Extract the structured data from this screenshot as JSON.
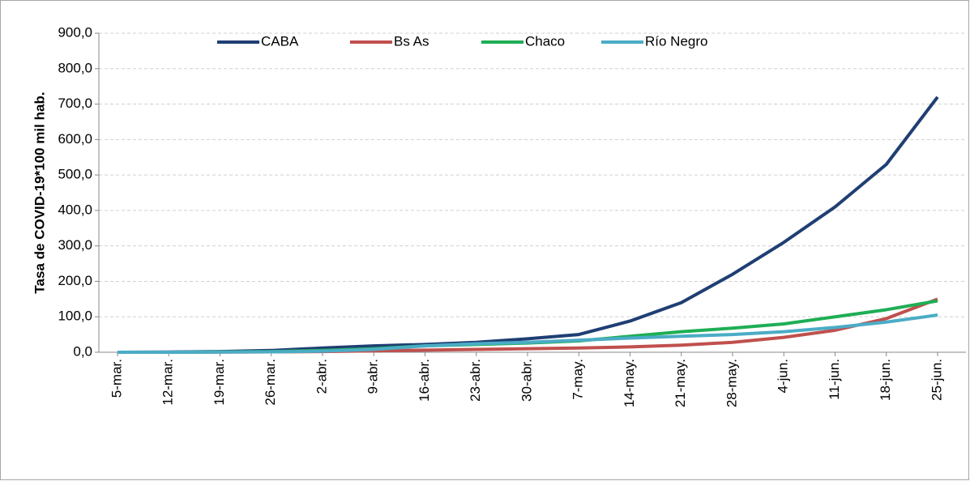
{
  "chart_data": {
    "type": "line",
    "y_label": "Tasa de COVID-19*100 mil hab.",
    "categories": [
      "5-mar.",
      "12-mar.",
      "19-mar.",
      "26-mar.",
      "2-abr.",
      "9-abr.",
      "16-abr.",
      "23-abr.",
      "30-abr.",
      "7-may.",
      "14-may.",
      "21-may.",
      "28-may.",
      "4-jun.",
      "11-jun.",
      "18-jun.",
      "25-jun."
    ],
    "series": [
      {
        "name": "CABA",
        "color": "#1f3f73",
        "values": [
          0,
          0.5,
          2,
          5,
          12,
          18,
          22,
          28,
          38,
          50,
          88,
          140,
          220,
          310,
          410,
          530,
          720
        ]
      },
      {
        "name": "Bs As",
        "color": "#c0504d",
        "values": [
          0,
          0,
          0.5,
          1,
          2,
          4,
          6,
          8,
          10,
          12,
          15,
          20,
          28,
          42,
          62,
          95,
          150
        ]
      },
      {
        "name": "Chaco",
        "color": "#1fae55",
        "values": [
          0,
          0,
          1,
          2,
          5,
          10,
          18,
          22,
          26,
          32,
          45,
          58,
          68,
          80,
          100,
          120,
          145
        ]
      },
      {
        "name": "Río Negro",
        "color": "#4bacc6",
        "values": [
          0,
          0,
          0.5,
          1,
          3,
          8,
          18,
          24,
          28,
          34,
          40,
          45,
          50,
          58,
          70,
          85,
          105
        ]
      }
    ],
    "ylim": [
      0,
      900
    ],
    "yticks": [
      {
        "value": 0,
        "label": "0,0"
      },
      {
        "value": 100,
        "label": "100,0"
      },
      {
        "value": 200,
        "label": "200,0"
      },
      {
        "value": 300,
        "label": "300,0"
      },
      {
        "value": 400,
        "label": "400,0"
      },
      {
        "value": 500,
        "label": "500,0"
      },
      {
        "value": 600,
        "label": "600,0"
      },
      {
        "value": 700,
        "label": "700,0"
      },
      {
        "value": 800,
        "label": "800,0"
      },
      {
        "value": 900,
        "label": "900,0"
      }
    ],
    "grid": true,
    "legend": "top"
  }
}
